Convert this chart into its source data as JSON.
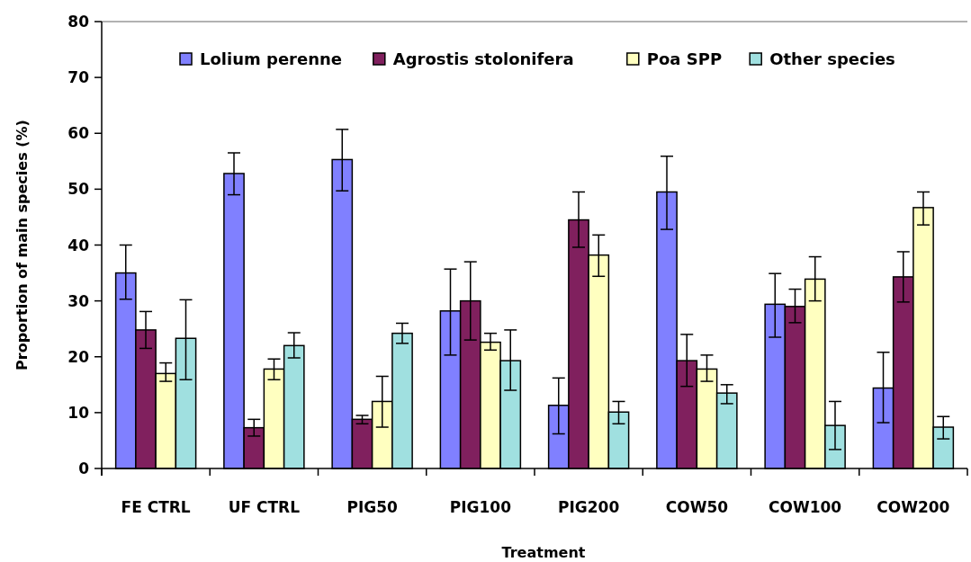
{
  "chart_data": {
    "type": "bar",
    "xlabel": "Treatment",
    "ylabel": "Proportion of main species (%)",
    "categories": [
      "FE CTRL",
      "UF CTRL",
      "PIG50",
      "PIG100",
      "PIG200",
      "COW50",
      "COW100",
      "COW200"
    ],
    "series": [
      {
        "name": "Lolium perenne",
        "color": "#8080ff",
        "values": [
          35,
          52.8,
          55.3,
          28.2,
          11.3,
          49.5,
          29.4,
          14.4
        ],
        "errors": [
          [
            30.3,
            40
          ],
          [
            49,
            56.5
          ],
          [
            49.7,
            60.7
          ],
          [
            20.3,
            35.7
          ],
          [
            6.2,
            16.2
          ],
          [
            42.8,
            55.9
          ],
          [
            23.5,
            34.9
          ],
          [
            8.2,
            20.8
          ]
        ]
      },
      {
        "name": "Agrostis stolonifera",
        "color": "#80205e",
        "values": [
          24.8,
          7.3,
          8.8,
          30,
          44.5,
          19.3,
          29,
          34.3
        ],
        "errors": [
          [
            21.5,
            28.1
          ],
          [
            5.8,
            8.8
          ],
          [
            8,
            9.5
          ],
          [
            23,
            37
          ],
          [
            39.6,
            49.5
          ],
          [
            14.7,
            24
          ],
          [
            26.1,
            32.1
          ],
          [
            29.8,
            38.8
          ]
        ]
      },
      {
        "name": "Poa SPP",
        "color": "#ffffc0",
        "values": [
          17,
          17.8,
          12,
          22.6,
          38.2,
          17.8,
          33.9,
          46.7
        ],
        "errors": [
          [
            15.6,
            18.9
          ],
          [
            15.9,
            19.6
          ],
          [
            7.4,
            16.5
          ],
          [
            21.2,
            24.2
          ],
          [
            34.4,
            41.8
          ],
          [
            15.6,
            20.3
          ],
          [
            30,
            37.9
          ],
          [
            43.6,
            49.5
          ]
        ]
      },
      {
        "name": "Other species",
        "color": "#a0e0e0",
        "values": [
          23.3,
          22,
          24.2,
          19.3,
          10.1,
          13.5,
          7.7,
          7.4
        ],
        "errors": [
          [
            15.9,
            30.2
          ],
          [
            19.8,
            24.3
          ],
          [
            22.4,
            26
          ],
          [
            14,
            24.8
          ],
          [
            8,
            12
          ],
          [
            11.6,
            15
          ],
          [
            3.4,
            12
          ],
          [
            5.3,
            9.3
          ]
        ]
      }
    ],
    "ylim": [
      0,
      80
    ],
    "yticks": [
      0,
      10,
      20,
      30,
      40,
      50,
      60,
      70,
      80
    ],
    "grid": false,
    "legend": "top"
  }
}
